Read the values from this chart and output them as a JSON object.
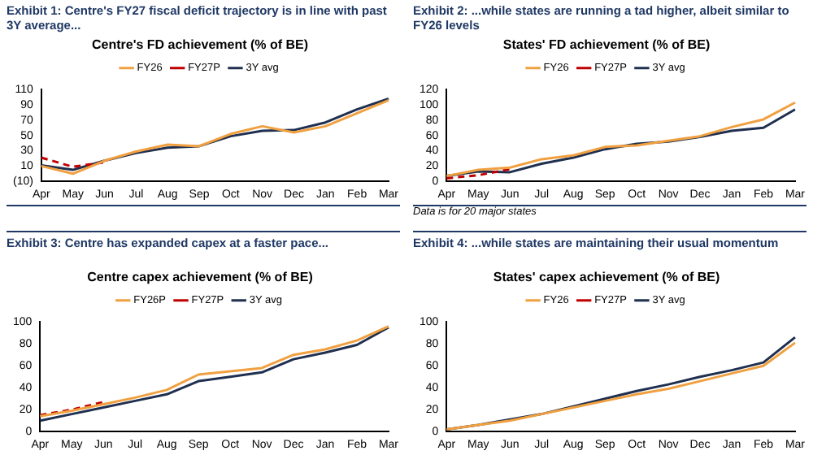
{
  "chart_data": [
    {
      "type": "line",
      "title": "Exhibit 1: Centre's FY27 fiscal deficit trajectory is in line with past 3Y average...",
      "subtitle": "Centre's FD achievement (% of BE)",
      "categories": [
        "Apr",
        "May",
        "Jun",
        "Jul",
        "Aug",
        "Sep",
        "Oct",
        "Nov",
        "Dec",
        "Jan",
        "Feb",
        "Mar"
      ],
      "series": [
        {
          "name": "FY26",
          "color": "#f0a040",
          "values": [
            10,
            0,
            17,
            29,
            38,
            36,
            52,
            62,
            54,
            62,
            79,
            96
          ]
        },
        {
          "name": "FY27P",
          "color": "#c00000",
          "line_style": "dashed",
          "values": [
            21,
            9,
            15,
            null,
            null,
            null,
            null,
            null,
            null,
            null,
            null,
            null
          ]
        },
        {
          "name": "3Y avg",
          "color": "#1f2f4f",
          "values": [
            11,
            5,
            17,
            27,
            34,
            36,
            49,
            56,
            57,
            67,
            84,
            98
          ]
        }
      ],
      "ylim": [
        -10,
        110
      ],
      "yticks": [
        {
          "value": -10,
          "label": "(10)"
        },
        10,
        30,
        50,
        70,
        90,
        110
      ],
      "grid": false,
      "legend": "top",
      "marker": "none"
    },
    {
      "type": "line",
      "title": "Exhibit 2: ...while states are running a tad higher, albeit similar to FY26 levels",
      "subtitle": "States' FD achievement (% of BE)",
      "categories": [
        "Apr",
        "May",
        "Jun",
        "Jul",
        "Aug",
        "Sep",
        "Oct",
        "Nov",
        "Dec",
        "Jan",
        "Feb",
        "Mar"
      ],
      "series": [
        {
          "name": "FY26",
          "color": "#f0a040",
          "values": [
            7,
            15,
            18,
            29,
            34,
            45,
            47,
            53,
            59,
            71,
            81,
            103
          ]
        },
        {
          "name": "FY27P",
          "color": "#c00000",
          "line_style": "dashed",
          "values": [
            4,
            8,
            16,
            null,
            null,
            null,
            null,
            null,
            null,
            null,
            null,
            null
          ]
        },
        {
          "name": "3Y avg",
          "color": "#1f2f4f",
          "values": [
            7,
            13,
            12,
            23,
            31,
            42,
            49,
            52,
            58,
            66,
            70,
            94
          ]
        }
      ],
      "ylim": [
        0,
        120
      ],
      "yticks": [
        0,
        20,
        40,
        60,
        80,
        100,
        120
      ],
      "grid": false,
      "legend": "top",
      "marker": "none",
      "annotations": [
        "Data is for 20 major states"
      ]
    },
    {
      "type": "line",
      "title": "Exhibit 3: Centre has expanded capex at a faster pace...",
      "subtitle": "Centre capex achievement (% of BE)",
      "categories": [
        "Apr",
        "May",
        "Jun",
        "Jul",
        "Aug",
        "Sep",
        "Oct",
        "Nov",
        "Dec",
        "Jan",
        "Feb",
        "Mar"
      ],
      "series": [
        {
          "name": "FY26P",
          "color": "#f0a040",
          "values": [
            14,
            19,
            25,
            31,
            38,
            52,
            55,
            58,
            70,
            75,
            83,
            96
          ]
        },
        {
          "name": "FY27P",
          "color": "#c00000",
          "line_style": "dashed",
          "values": [
            15,
            20,
            27,
            null,
            null,
            null,
            null,
            null,
            null,
            null,
            null,
            null
          ]
        },
        {
          "name": "3Y avg",
          "color": "#1f2f4f",
          "values": [
            10,
            16,
            22,
            28,
            34,
            46,
            50,
            54,
            66,
            72,
            79,
            95
          ]
        }
      ],
      "ylim": [
        0,
        100
      ],
      "yticks": [
        0,
        20,
        40,
        60,
        80,
        100
      ],
      "grid": false,
      "legend": "top",
      "marker": "none"
    },
    {
      "type": "line",
      "title": "Exhibit 4: ...while states are maintaining their usual momentum",
      "subtitle": "States' capex achievement (% of BE)",
      "categories": [
        "Apr",
        "May",
        "Jun",
        "Jul",
        "Aug",
        "Sep",
        "Oct",
        "Nov",
        "Dec",
        "Jan",
        "Feb",
        "Mar"
      ],
      "series": [
        {
          "name": "FY26",
          "color": "#f0a040",
          "values": [
            2,
            6,
            10,
            16,
            22,
            28,
            34,
            39,
            46,
            53,
            60,
            81
          ]
        },
        {
          "name": "FY27P",
          "color": "#c00000",
          "line_style": "dashed",
          "values": [
            null,
            null,
            null,
            null,
            null,
            null,
            null,
            null,
            null,
            null,
            null,
            null
          ]
        },
        {
          "name": "3Y avg",
          "color": "#1f2f4f",
          "values": [
            2,
            6,
            11,
            16,
            23,
            30,
            37,
            43,
            50,
            56,
            63,
            86
          ]
        }
      ],
      "ylim": [
        0,
        100
      ],
      "yticks": [
        0,
        20,
        40,
        60,
        80,
        100
      ],
      "grid": false,
      "legend": "top",
      "marker": "none"
    }
  ]
}
